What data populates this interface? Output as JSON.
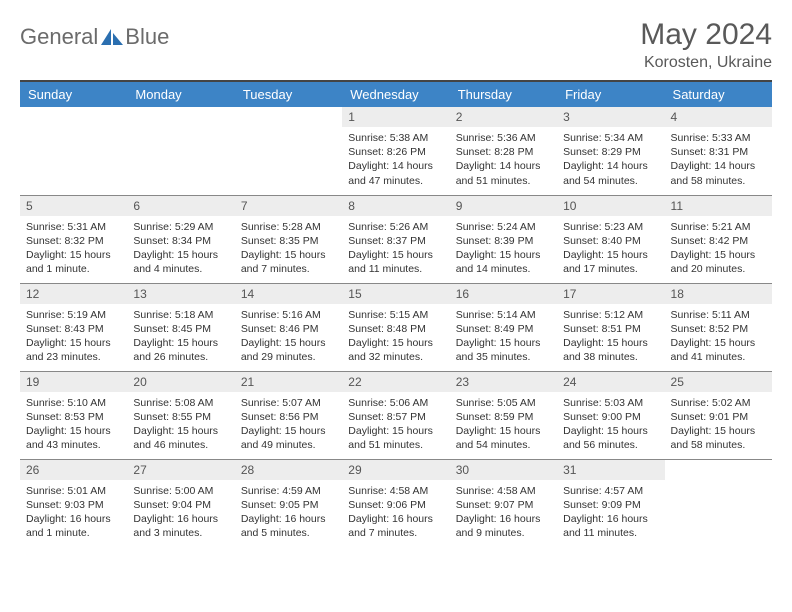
{
  "brand": {
    "name1": "General",
    "name2": "Blue"
  },
  "title": "May 2024",
  "location": "Korosten, Ukraine",
  "colors": {
    "header_bg": "#3d84c6",
    "header_text": "#ffffff",
    "daynum_bg": "#ededed",
    "daynum_text": "#555555",
    "body_text": "#333333",
    "brand_text": "#6b6b6b",
    "title_text": "#595959",
    "logo_accent": "#2b6fb0"
  },
  "weekdays": [
    "Sunday",
    "Monday",
    "Tuesday",
    "Wednesday",
    "Thursday",
    "Friday",
    "Saturday"
  ],
  "weeks": [
    [
      null,
      null,
      null,
      {
        "d": "1",
        "sr": "5:38 AM",
        "ss": "8:26 PM",
        "dl": "14 hours and 47 minutes."
      },
      {
        "d": "2",
        "sr": "5:36 AM",
        "ss": "8:28 PM",
        "dl": "14 hours and 51 minutes."
      },
      {
        "d": "3",
        "sr": "5:34 AM",
        "ss": "8:29 PM",
        "dl": "14 hours and 54 minutes."
      },
      {
        "d": "4",
        "sr": "5:33 AM",
        "ss": "8:31 PM",
        "dl": "14 hours and 58 minutes."
      }
    ],
    [
      {
        "d": "5",
        "sr": "5:31 AM",
        "ss": "8:32 PM",
        "dl": "15 hours and 1 minute."
      },
      {
        "d": "6",
        "sr": "5:29 AM",
        "ss": "8:34 PM",
        "dl": "15 hours and 4 minutes."
      },
      {
        "d": "7",
        "sr": "5:28 AM",
        "ss": "8:35 PM",
        "dl": "15 hours and 7 minutes."
      },
      {
        "d": "8",
        "sr": "5:26 AM",
        "ss": "8:37 PM",
        "dl": "15 hours and 11 minutes."
      },
      {
        "d": "9",
        "sr": "5:24 AM",
        "ss": "8:39 PM",
        "dl": "15 hours and 14 minutes."
      },
      {
        "d": "10",
        "sr": "5:23 AM",
        "ss": "8:40 PM",
        "dl": "15 hours and 17 minutes."
      },
      {
        "d": "11",
        "sr": "5:21 AM",
        "ss": "8:42 PM",
        "dl": "15 hours and 20 minutes."
      }
    ],
    [
      {
        "d": "12",
        "sr": "5:19 AM",
        "ss": "8:43 PM",
        "dl": "15 hours and 23 minutes."
      },
      {
        "d": "13",
        "sr": "5:18 AM",
        "ss": "8:45 PM",
        "dl": "15 hours and 26 minutes."
      },
      {
        "d": "14",
        "sr": "5:16 AM",
        "ss": "8:46 PM",
        "dl": "15 hours and 29 minutes."
      },
      {
        "d": "15",
        "sr": "5:15 AM",
        "ss": "8:48 PM",
        "dl": "15 hours and 32 minutes."
      },
      {
        "d": "16",
        "sr": "5:14 AM",
        "ss": "8:49 PM",
        "dl": "15 hours and 35 minutes."
      },
      {
        "d": "17",
        "sr": "5:12 AM",
        "ss": "8:51 PM",
        "dl": "15 hours and 38 minutes."
      },
      {
        "d": "18",
        "sr": "5:11 AM",
        "ss": "8:52 PM",
        "dl": "15 hours and 41 minutes."
      }
    ],
    [
      {
        "d": "19",
        "sr": "5:10 AM",
        "ss": "8:53 PM",
        "dl": "15 hours and 43 minutes."
      },
      {
        "d": "20",
        "sr": "5:08 AM",
        "ss": "8:55 PM",
        "dl": "15 hours and 46 minutes."
      },
      {
        "d": "21",
        "sr": "5:07 AM",
        "ss": "8:56 PM",
        "dl": "15 hours and 49 minutes."
      },
      {
        "d": "22",
        "sr": "5:06 AM",
        "ss": "8:57 PM",
        "dl": "15 hours and 51 minutes."
      },
      {
        "d": "23",
        "sr": "5:05 AM",
        "ss": "8:59 PM",
        "dl": "15 hours and 54 minutes."
      },
      {
        "d": "24",
        "sr": "5:03 AM",
        "ss": "9:00 PM",
        "dl": "15 hours and 56 minutes."
      },
      {
        "d": "25",
        "sr": "5:02 AM",
        "ss": "9:01 PM",
        "dl": "15 hours and 58 minutes."
      }
    ],
    [
      {
        "d": "26",
        "sr": "5:01 AM",
        "ss": "9:03 PM",
        "dl": "16 hours and 1 minute."
      },
      {
        "d": "27",
        "sr": "5:00 AM",
        "ss": "9:04 PM",
        "dl": "16 hours and 3 minutes."
      },
      {
        "d": "28",
        "sr": "4:59 AM",
        "ss": "9:05 PM",
        "dl": "16 hours and 5 minutes."
      },
      {
        "d": "29",
        "sr": "4:58 AM",
        "ss": "9:06 PM",
        "dl": "16 hours and 7 minutes."
      },
      {
        "d": "30",
        "sr": "4:58 AM",
        "ss": "9:07 PM",
        "dl": "16 hours and 9 minutes."
      },
      {
        "d": "31",
        "sr": "4:57 AM",
        "ss": "9:09 PM",
        "dl": "16 hours and 11 minutes."
      },
      null
    ]
  ],
  "labels": {
    "sunrise": "Sunrise:",
    "sunset": "Sunset:",
    "daylight": "Daylight:"
  }
}
